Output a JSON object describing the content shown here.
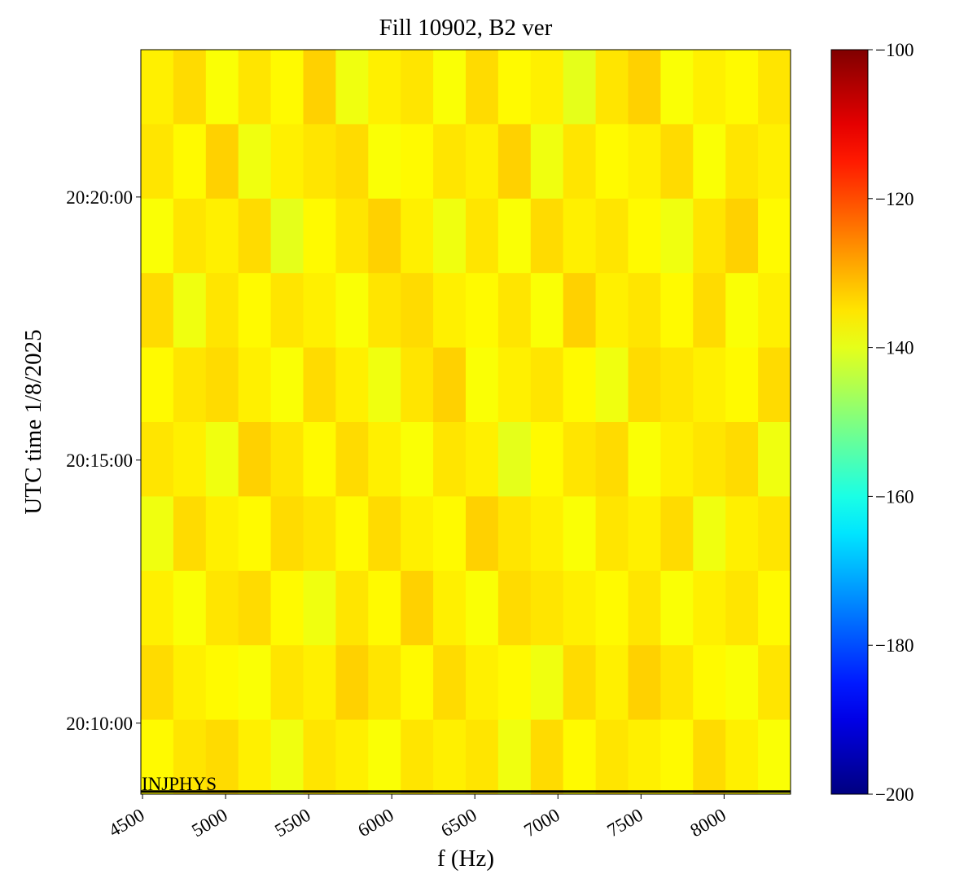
{
  "chart_data": {
    "type": "heatmap",
    "title": "Fill 10902, B2 ver",
    "x_label": "f (Hz)",
    "y_label": "UTC time 1/8/2025",
    "xlim": [
      4490,
      8400
    ],
    "xticks": [
      4500,
      5000,
      5500,
      6000,
      6500,
      7000,
      7500,
      8000
    ],
    "ylim": [
      72519,
      73368
    ],
    "yticks": [
      {
        "value": 72600,
        "label": "20:10:00"
      },
      {
        "value": 72900,
        "label": "20:15:00"
      },
      {
        "value": 73200,
        "label": "20:20:00"
      }
    ],
    "colormap": "jet",
    "clim": [
      -200,
      -100
    ],
    "cticks": [
      {
        "value": -200,
        "label": "−200"
      },
      {
        "value": -180,
        "label": "−180"
      },
      {
        "value": -160,
        "label": "−160"
      },
      {
        "value": -140,
        "label": "−140"
      },
      {
        "value": -120,
        "label": "−120"
      },
      {
        "value": -100,
        "label": "−100"
      }
    ],
    "annotation": {
      "text": "INJPHYS",
      "y": 72522
    },
    "z": [
      [
        -136,
        -134,
        -138,
        -135,
        -137,
        -133,
        -139,
        -136,
        -135,
        -138,
        -134,
        -137,
        -136,
        -140,
        -135,
        -133,
        -138,
        -136,
        -137,
        -135
      ],
      [
        -135,
        -137,
        -133,
        -139,
        -136,
        -135,
        -134,
        -138,
        -137,
        -135,
        -136,
        -133,
        -139,
        -135,
        -137,
        -136,
        -134,
        -138,
        -135,
        -136
      ],
      [
        -138,
        -135,
        -136,
        -134,
        -140,
        -137,
        -135,
        -133,
        -136,
        -139,
        -135,
        -138,
        -134,
        -136,
        -135,
        -137,
        -139,
        -135,
        -133,
        -137
      ],
      [
        -134,
        -139,
        -135,
        -137,
        -135,
        -136,
        -138,
        -135,
        -134,
        -136,
        -137,
        -135,
        -138,
        -133,
        -136,
        -135,
        -137,
        -134,
        -138,
        -136
      ],
      [
        -137,
        -135,
        -134,
        -136,
        -138,
        -134,
        -136,
        -139,
        -135,
        -133,
        -138,
        -136,
        -135,
        -137,
        -139,
        -134,
        -135,
        -136,
        -137,
        -134
      ],
      [
        -135,
        -136,
        -139,
        -133,
        -135,
        -137,
        -134,
        -136,
        -138,
        -135,
        -136,
        -140,
        -137,
        -135,
        -134,
        -138,
        -136,
        -135,
        -134,
        -139
      ],
      [
        -139,
        -134,
        -136,
        -137,
        -134,
        -135,
        -137,
        -134,
        -136,
        -137,
        -133,
        -135,
        -136,
        -138,
        -135,
        -136,
        -134,
        -139,
        -136,
        -135
      ],
      [
        -136,
        -138,
        -135,
        -134,
        -137,
        -139,
        -135,
        -137,
        -133,
        -136,
        -138,
        -134,
        -135,
        -136,
        -137,
        -135,
        -138,
        -136,
        -135,
        -137
      ],
      [
        -134,
        -136,
        -137,
        -138,
        -135,
        -136,
        -133,
        -135,
        -137,
        -134,
        -136,
        -137,
        -139,
        -134,
        -136,
        -133,
        -135,
        -137,
        -138,
        -135
      ],
      [
        -137,
        -135,
        -134,
        -136,
        -139,
        -135,
        -136,
        -138,
        -135,
        -136,
        -135,
        -139,
        -134,
        -137,
        -135,
        -136,
        -137,
        -134,
        -136,
        -138
      ]
    ]
  }
}
